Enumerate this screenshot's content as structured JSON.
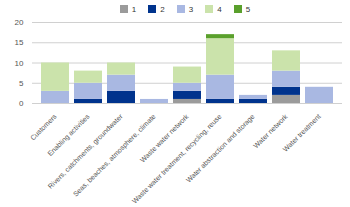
{
  "chart_data": {
    "type": "bar",
    "stacked": true,
    "grid": true,
    "categories": [
      "Customers",
      "Enabling activities",
      "Rivers, catchments, groundwater",
      "Seas, beaches, atmosphere, climate",
      "Waste water network",
      "Waste water treatment, recycling, reuse",
      "Water abstraction and storage",
      "Water network",
      "Water treatment"
    ],
    "series": [
      {
        "name": "1",
        "color": "#9b9b9b",
        "values": [
          0,
          0,
          0,
          0,
          1,
          0,
          0,
          2,
          0
        ]
      },
      {
        "name": "2",
        "color": "#00338d",
        "values": [
          0,
          1,
          3,
          0,
          2,
          1,
          1,
          2,
          0
        ]
      },
      {
        "name": "3",
        "color": "#a9b8e2",
        "values": [
          3,
          4,
          4,
          1,
          2,
          6,
          1,
          4,
          4
        ]
      },
      {
        "name": "4",
        "color": "#cbe3ab",
        "values": [
          7,
          3,
          3,
          0,
          4,
          9,
          0,
          5,
          0
        ]
      },
      {
        "name": "5",
        "color": "#5aa02c",
        "values": [
          0,
          0,
          0,
          0,
          0,
          1,
          0,
          0,
          0
        ]
      }
    ],
    "ylim": [
      0,
      20
    ],
    "yticks": [
      0,
      5,
      10,
      15,
      20
    ],
    "legend": "top"
  }
}
